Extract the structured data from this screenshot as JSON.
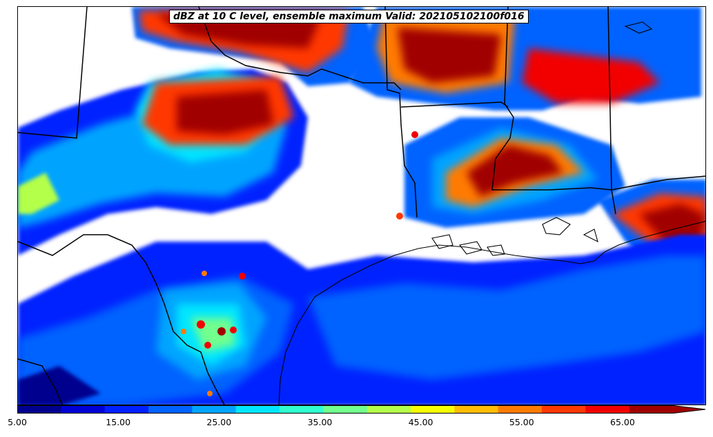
{
  "map": {
    "title": "dBZ at 10 C level, ensemble maximum Valid: 202105102100f016",
    "field": "reflectivity"
  },
  "colorbar": {
    "tick_labels": [
      "5.00",
      "15.00",
      "25.00",
      "35.00",
      "45.00",
      "55.00",
      "65.00"
    ],
    "min": 5,
    "max": 70,
    "step": 5,
    "extend": "max",
    "colors": [
      "#00008f",
      "#0000d6",
      "#0020ff",
      "#0062ff",
      "#00a4ff",
      "#00e6ff",
      "#30ffcf",
      "#72ff8d",
      "#b4ff4a",
      "#f6ff00",
      "#ffbc00",
      "#ff7a00",
      "#ff3800",
      "#f20000",
      "#a00000"
    ]
  },
  "colors": {
    "state_border": "#000000",
    "coastline": "#000000",
    "background": "#ffffff"
  }
}
